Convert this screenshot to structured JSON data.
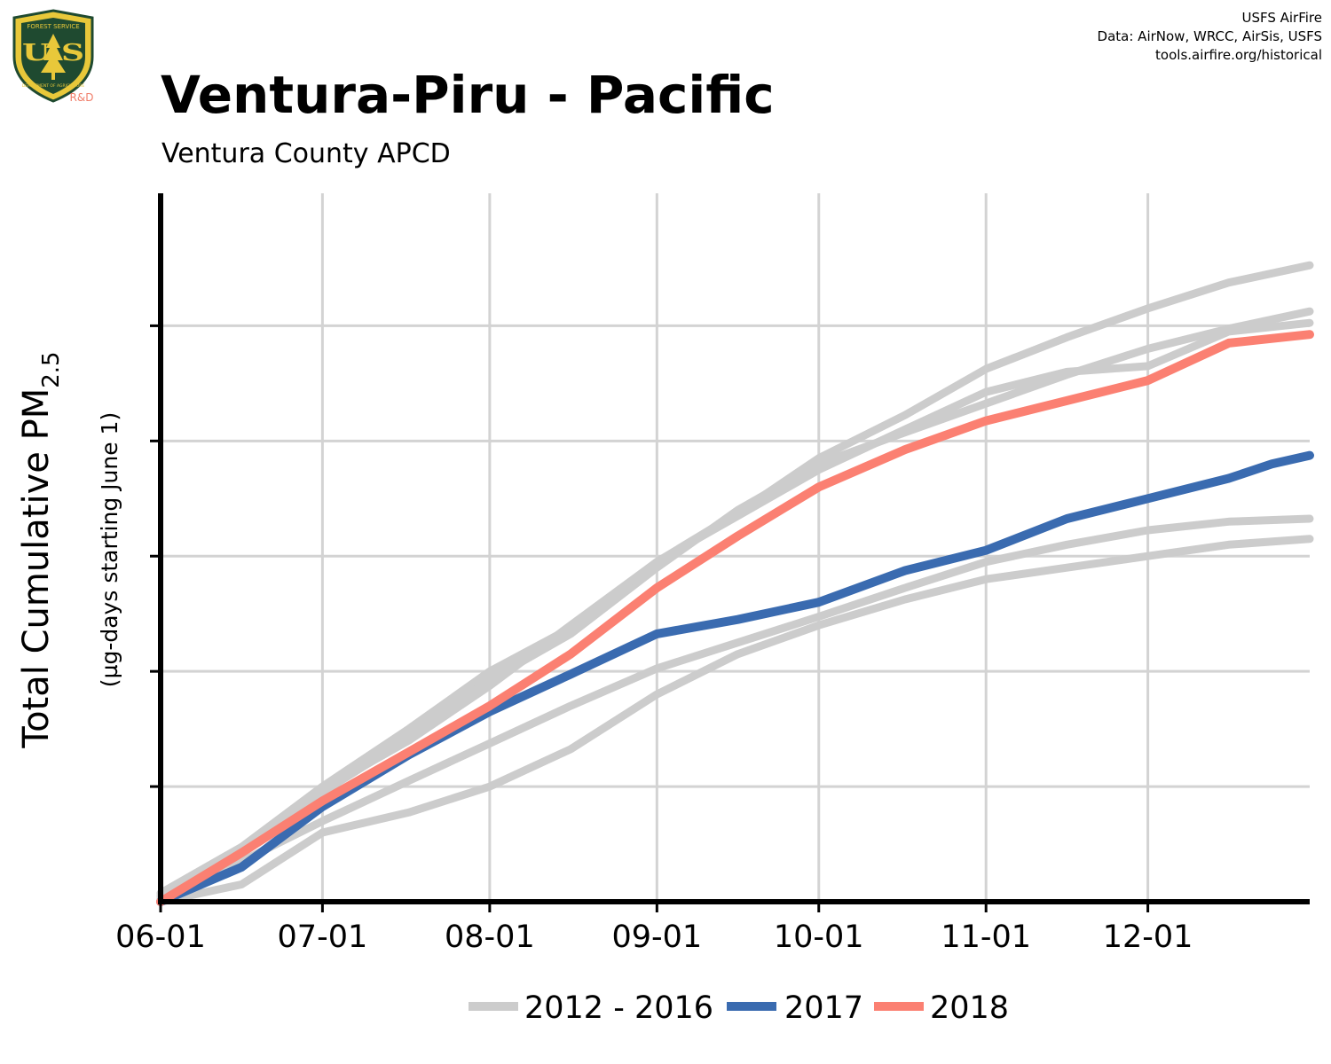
{
  "header": {
    "title": "Ventura-Piru - Pacific",
    "subtitle": "Ventura County  APCD",
    "credits": [
      "USFS AirFire",
      "Data: AirNow, WRCC, AirSis, USFS",
      "tools.airfire.org/historical"
    ]
  },
  "logo": {
    "icon": "usfs-shield-icon",
    "ring_top_text": "FOREST SERVICE",
    "ring_bottom_text": "DEPARTMENT OF AGRICULTURE",
    "letters": "U S",
    "badge": "R&D"
  },
  "colors": {
    "history": "#cccccc",
    "y2017": "#3a6bb0",
    "y2018": "#fb8072",
    "grid": "#d3d3d3",
    "logo_green": "#1f4a30",
    "logo_gold": "#e8c83a",
    "badge": "#f07e6a"
  },
  "chart_data": {
    "type": "line",
    "xlabel": "",
    "ylabel_main": "Total Cumulative PM",
    "ylabel_sub": "2.5",
    "ylabel_units": "(µg-days starting June 1)",
    "x_ticks": [
      "06-01",
      "07-01",
      "08-01",
      "09-01",
      "10-01",
      "11-01",
      "12-01"
    ],
    "x_tick_days": [
      0,
      30,
      61,
      92,
      122,
      153,
      183
    ],
    "xlim": [
      0,
      213
    ],
    "y_grid": [
      4,
      8,
      12,
      16,
      20
    ],
    "ylim": [
      0,
      24.6
    ],
    "legend": {
      "position": "bottom",
      "entries": [
        "2012 - 2016",
        "2017",
        "2018"
      ]
    },
    "series": [
      {
        "group": "history",
        "points": [
          [
            0,
            0.3
          ],
          [
            15,
            1.9
          ],
          [
            30,
            4
          ],
          [
            46,
            6
          ],
          [
            61,
            8
          ],
          [
            76,
            9.5
          ],
          [
            92,
            11.8
          ],
          [
            107,
            13.5
          ],
          [
            122,
            15.4
          ],
          [
            138,
            16.9
          ],
          [
            153,
            18.5
          ],
          [
            168,
            19.6
          ],
          [
            183,
            20.6
          ],
          [
            198,
            21.5
          ],
          [
            213,
            22.1
          ]
        ]
      },
      {
        "group": "history",
        "points": [
          [
            0,
            0.2
          ],
          [
            15,
            1.7
          ],
          [
            30,
            3.8
          ],
          [
            46,
            5.7
          ],
          [
            61,
            7.7
          ],
          [
            76,
            9.3
          ],
          [
            92,
            11.6
          ],
          [
            107,
            13.6
          ],
          [
            122,
            15.2
          ],
          [
            138,
            16.3
          ],
          [
            153,
            17.3
          ],
          [
            168,
            18.3
          ],
          [
            183,
            19.2
          ],
          [
            198,
            19.9
          ],
          [
            213,
            20.5
          ]
        ]
      },
      {
        "group": "history",
        "points": [
          [
            0,
            0.1
          ],
          [
            15,
            1.4
          ],
          [
            30,
            2.8
          ],
          [
            46,
            4.2
          ],
          [
            61,
            5.5
          ],
          [
            76,
            6.8
          ],
          [
            92,
            8.1
          ],
          [
            107,
            9
          ],
          [
            122,
            9.9
          ],
          [
            138,
            10.9
          ],
          [
            153,
            11.8
          ],
          [
            168,
            12.4
          ],
          [
            183,
            12.9
          ],
          [
            198,
            13.2
          ],
          [
            213,
            13.3
          ]
        ]
      },
      {
        "group": "history",
        "points": [
          [
            0,
            0
          ],
          [
            15,
            0.6
          ],
          [
            30,
            2.4
          ],
          [
            46,
            3.1
          ],
          [
            61,
            4
          ],
          [
            76,
            5.3
          ],
          [
            92,
            7.2
          ],
          [
            107,
            8.6
          ],
          [
            122,
            9.6
          ],
          [
            138,
            10.5
          ],
          [
            153,
            11.2
          ],
          [
            168,
            11.6
          ],
          [
            183,
            12
          ],
          [
            198,
            12.4
          ],
          [
            213,
            12.6
          ]
        ]
      },
      {
        "group": "history",
        "points": [
          [
            0,
            0.2
          ],
          [
            15,
            1.8
          ],
          [
            30,
            3.9
          ],
          [
            46,
            5.6
          ],
          [
            61,
            7.5
          ],
          [
            76,
            9.6
          ],
          [
            92,
            11.8
          ],
          [
            107,
            13.4
          ],
          [
            122,
            15
          ],
          [
            138,
            16.4
          ],
          [
            153,
            17.7
          ],
          [
            168,
            18.4
          ],
          [
            183,
            18.6
          ],
          [
            198,
            19.8
          ],
          [
            213,
            20.1
          ]
        ]
      },
      {
        "group": "y2017",
        "points": [
          [
            0,
            0
          ],
          [
            15,
            1.2
          ],
          [
            30,
            3.3
          ],
          [
            46,
            5.1
          ],
          [
            61,
            6.6
          ],
          [
            76,
            7.9
          ],
          [
            92,
            9.3
          ],
          [
            107,
            9.8
          ],
          [
            122,
            10.4
          ],
          [
            138,
            11.5
          ],
          [
            153,
            12.2
          ],
          [
            168,
            13.3
          ],
          [
            183,
            14
          ],
          [
            198,
            14.7
          ],
          [
            206,
            15.2
          ],
          [
            213,
            15.5
          ]
        ]
      },
      {
        "group": "y2018",
        "points": [
          [
            0,
            0
          ],
          [
            15,
            1.7
          ],
          [
            30,
            3.5
          ],
          [
            46,
            5.2
          ],
          [
            61,
            6.8
          ],
          [
            76,
            8.6
          ],
          [
            92,
            10.9
          ],
          [
            107,
            12.7
          ],
          [
            122,
            14.4
          ],
          [
            138,
            15.7
          ],
          [
            153,
            16.7
          ],
          [
            168,
            17.4
          ],
          [
            183,
            18.1
          ],
          [
            198,
            19.4
          ],
          [
            213,
            19.7
          ]
        ]
      }
    ]
  }
}
